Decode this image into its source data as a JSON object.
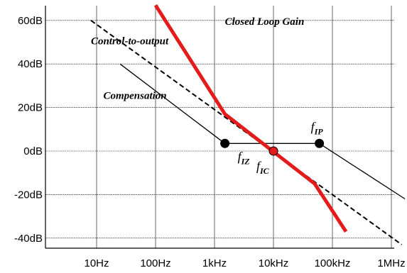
{
  "chart_data": {
    "type": "line",
    "x_scale": "log",
    "y_unit": "dB",
    "xlim": [
      3,
      2000000
    ],
    "ylim": [
      -42,
      66
    ],
    "grid": true,
    "x_ticks": [
      {
        "value": 10,
        "label": "10Hz"
      },
      {
        "value": 100,
        "label": "100Hz"
      },
      {
        "value": 1000,
        "label": "1kHz"
      },
      {
        "value": 10000,
        "label": "10kHz"
      },
      {
        "value": 100000,
        "label": "100kHz"
      },
      {
        "value": 1000000,
        "label": "1MHz"
      }
    ],
    "y_ticks": [
      {
        "value": 60,
        "label": "60dB"
      },
      {
        "value": 40,
        "label": "40dB"
      },
      {
        "value": 20,
        "label": "20dB"
      },
      {
        "value": 0,
        "label": "0dB"
      },
      {
        "value": -20,
        "label": "-20dB"
      },
      {
        "value": -40,
        "label": "-40dB"
      }
    ],
    "series": [
      {
        "name": "Control-to-output",
        "style": "dashed",
        "color": "#000000",
        "points": [
          [
            8,
            60
          ],
          [
            1500000,
            -43
          ]
        ]
      },
      {
        "name": "Compensation",
        "style": "solid",
        "color": "#000000",
        "points": [
          [
            25,
            40
          ],
          [
            1500,
            3.5
          ],
          [
            60000,
            3.5
          ],
          [
            1700000,
            -22
          ]
        ]
      },
      {
        "name": "Closed Loop Gain",
        "style": "solid-thick",
        "color": "#e31b1b",
        "points": [
          [
            100,
            67
          ],
          [
            1500,
            17
          ],
          [
            50000,
            -15
          ],
          [
            170000,
            -37
          ]
        ]
      }
    ],
    "markers": [
      {
        "name": "f_IZ",
        "main": "f",
        "sub": "IZ",
        "x": 1500,
        "y": 3.5,
        "color": "#000000"
      },
      {
        "name": "f_IC",
        "main": "f",
        "sub": "IC",
        "x": 10000,
        "y": 0,
        "color": "#e31b1b"
      },
      {
        "name": "f_IP",
        "main": "f",
        "sub": "IP",
        "x": 60000,
        "y": 3.5,
        "color": "#000000"
      }
    ],
    "annotations": [
      {
        "text": "Closed Loop Gain",
        "anchor_x": 1500,
        "anchor_y": 58
      },
      {
        "text": "Control-to-output",
        "anchor_x": 8,
        "anchor_y": 49
      },
      {
        "text": "Compensation",
        "anchor_x": 13,
        "anchor_y": 24
      }
    ]
  }
}
